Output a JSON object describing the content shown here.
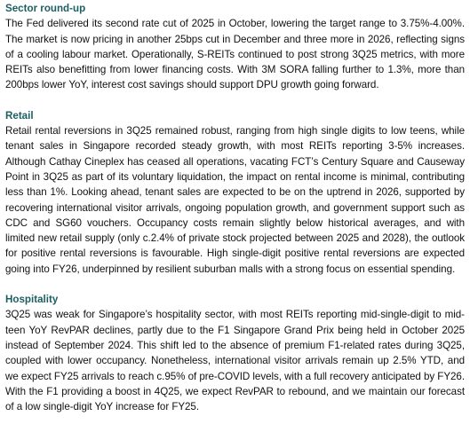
{
  "sections": [
    {
      "heading": "Sector round-up",
      "body": "The Fed delivered its second rate cut of 2025 in October, lowering the target range to 3.75%-4.00%. The market is now pricing in another 25bps cut in December and three more in 2026, reflecting signs of a cooling labour market. Operationally, S-REITs continued to post strong 3Q25 metrics, with more REITs also benefitting from lower financing costs. With 3M SORA falling further to 1.3%, more than 200bps lower YoY, interest cost savings should support DPU growth going forward."
    },
    {
      "heading": "Retail",
      "body": "Retail rental reversions in 3Q25 remained robust, ranging from high single digits to low teens, while tenant sales in Singapore recorded steady growth, with most REITs reporting 3-5% increases. Although Cathay Cineplex has ceased all operations, vacating FCT’s Century Square and Causeway Point in 3Q25 as part of its voluntary liquidation, the impact on rental income is minimal, contributing less than 1%. Looking ahead, tenant sales are expected to be on the uptrend in 2026, supported by recovering international visitor arrivals, ongoing population growth, and government support such as CDC and SG60 vouchers. Occupancy costs remain slightly below historical averages, and with limited new retail supply (only c.2.4% of private stock projected between 2025 and 2028), the outlook for positive rental reversions is favourable. High single-digit positive rental reversions are expected going into FY26, underpinned by resilient suburban malls with a strong focus on essential spending."
    },
    {
      "heading": "Hospitality",
      "body": "3Q25 was weak for Singapore’s hospitality sector, with most REITs reporting mid-single-digit to mid-teen YoY RevPAR declines, partly due to the F1 Singapore Grand Prix being held in October 2025 instead of September 2024. This shift led to the absence of premium F1-related rates during 3Q25, coupled with lower occupancy. Nonetheless, international visitor arrivals remain up 2.5% YTD, and we expect FY25 arrivals to reach c.95% of pre-COVID levels, with a full recovery anticipated by FY26. With the F1 providing a boost in 4Q25, we expect RevPAR to rebound, and we maintain our forecast of a low single-digit YoY increase for FY25."
    }
  ]
}
